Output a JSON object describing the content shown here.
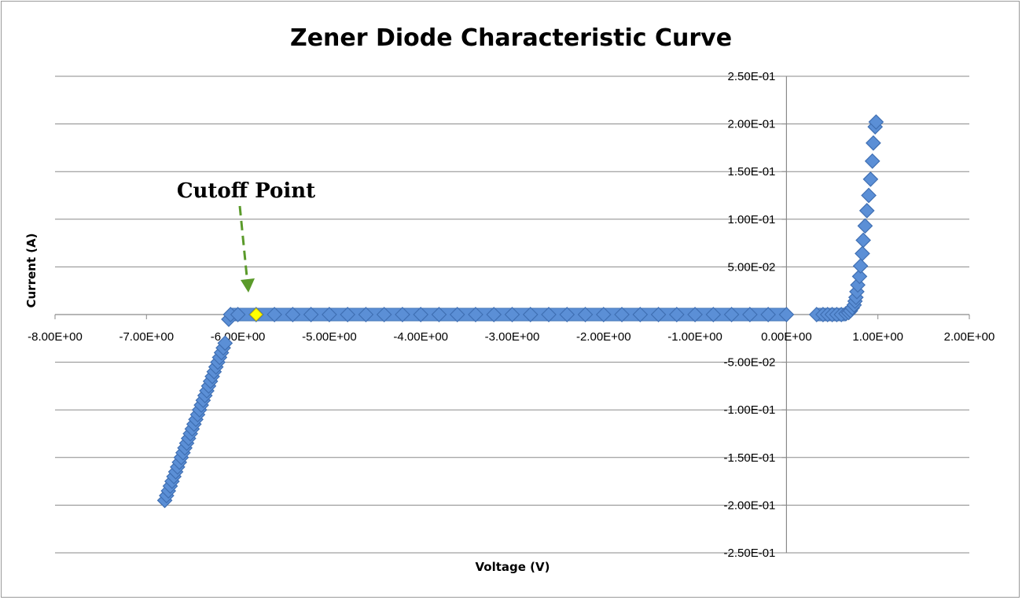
{
  "chart_data": {
    "type": "scatter",
    "title": "Zener Diode Characteristic Curve",
    "xlabel": "Voltage (V)",
    "ylabel": "Current (A)",
    "xlim": [
      -8,
      2
    ],
    "ylim": [
      -0.25,
      0.25
    ],
    "x_ticks": [
      -8,
      -7,
      -6,
      -5,
      -4,
      -3,
      -2,
      -1,
      0,
      1,
      2
    ],
    "x_tick_labels": [
      "-8.00E+00",
      "-7.00E+00",
      "-6.00E+00",
      "-5.00E+00",
      "-4.00E+00",
      "-3.00E+00",
      "-2.00E+00",
      "-1.00E+00",
      "0.00E+00",
      "1.00E+00",
      "2.00E+00"
    ],
    "y_ticks": [
      0.25,
      0.2,
      0.15,
      0.1,
      0.05,
      0,
      -0.05,
      -0.1,
      -0.15,
      -0.2,
      -0.25
    ],
    "y_tick_labels": [
      "2.50E-01",
      "2.00E-01",
      "1.50E-01",
      "1.00E-01",
      "5.00E-02",
      "0.00E+00",
      "-5.00E-02",
      "-1.00E-01",
      "-1.50E-01",
      "-2.00E-01",
      "-2.50E-01"
    ],
    "grid": true,
    "legend": "none",
    "series_color": "#5b8fd6",
    "series": [
      {
        "points": [
          [
            -6.8,
            -0.195
          ],
          [
            -6.78,
            -0.19
          ],
          [
            -6.76,
            -0.185
          ],
          [
            -6.74,
            -0.18
          ],
          [
            -6.72,
            -0.175
          ],
          [
            -6.7,
            -0.17
          ],
          [
            -6.68,
            -0.165
          ],
          [
            -6.66,
            -0.16
          ],
          [
            -6.64,
            -0.155
          ],
          [
            -6.62,
            -0.15
          ],
          [
            -6.6,
            -0.145
          ],
          [
            -6.58,
            -0.14
          ],
          [
            -6.56,
            -0.135
          ],
          [
            -6.54,
            -0.13
          ],
          [
            -6.52,
            -0.125
          ],
          [
            -6.5,
            -0.12
          ],
          [
            -6.48,
            -0.115
          ],
          [
            -6.46,
            -0.11
          ],
          [
            -6.44,
            -0.105
          ],
          [
            -6.42,
            -0.1
          ],
          [
            -6.4,
            -0.095
          ],
          [
            -6.38,
            -0.09
          ],
          [
            -6.36,
            -0.085
          ],
          [
            -6.34,
            -0.08
          ],
          [
            -6.32,
            -0.075
          ],
          [
            -6.3,
            -0.07
          ],
          [
            -6.28,
            -0.065
          ],
          [
            -6.26,
            -0.06
          ],
          [
            -6.24,
            -0.055
          ],
          [
            -6.22,
            -0.05
          ],
          [
            -6.2,
            -0.045
          ],
          [
            -6.18,
            -0.04
          ],
          [
            -6.16,
            -0.035
          ],
          [
            -6.14,
            -0.03
          ],
          [
            -6.1,
            -0.005
          ],
          [
            -6.08,
            0.0
          ],
          [
            -6.0,
            0.0
          ],
          [
            -5.8,
            0.0
          ],
          [
            -5.6,
            0.0
          ],
          [
            -5.4,
            0.0
          ],
          [
            -5.2,
            0.0
          ],
          [
            -5.0,
            0.0
          ],
          [
            -4.8,
            0.0
          ],
          [
            -4.6,
            0.0
          ],
          [
            -4.4,
            0.0
          ],
          [
            -4.2,
            0.0
          ],
          [
            -4.0,
            0.0
          ],
          [
            -3.8,
            0.0
          ],
          [
            -3.6,
            0.0
          ],
          [
            -3.4,
            0.0
          ],
          [
            -3.2,
            0.0
          ],
          [
            -3.0,
            0.0
          ],
          [
            -2.8,
            0.0
          ],
          [
            -2.6,
            0.0
          ],
          [
            -2.4,
            0.0
          ],
          [
            -2.2,
            0.0
          ],
          [
            -2.0,
            0.0
          ],
          [
            -1.8,
            0.0
          ],
          [
            -1.6,
            0.0
          ],
          [
            -1.4,
            0.0
          ],
          [
            -1.2,
            0.0
          ],
          [
            -1.0,
            0.0
          ],
          [
            -0.8,
            0.0
          ],
          [
            -0.6,
            0.0
          ],
          [
            -0.4,
            0.0
          ],
          [
            -0.2,
            0.0
          ],
          [
            0.0,
            0.0
          ],
          [
            0.33,
            0.0
          ],
          [
            0.4,
            0.0
          ],
          [
            0.45,
            0.0
          ],
          [
            0.5,
            0.0
          ],
          [
            0.55,
            0.0
          ],
          [
            0.6,
            0.0
          ],
          [
            0.65,
            0.001
          ],
          [
            0.68,
            0.002
          ],
          [
            0.7,
            0.004
          ],
          [
            0.72,
            0.007
          ],
          [
            0.74,
            0.01
          ],
          [
            0.75,
            0.014
          ],
          [
            0.76,
            0.018
          ],
          [
            0.77,
            0.024
          ],
          [
            0.78,
            0.031
          ],
          [
            0.8,
            0.04
          ],
          [
            0.81,
            0.051
          ],
          [
            0.83,
            0.064
          ],
          [
            0.84,
            0.078
          ],
          [
            0.86,
            0.093
          ],
          [
            0.88,
            0.109
          ],
          [
            0.9,
            0.125
          ],
          [
            0.92,
            0.142
          ],
          [
            0.94,
            0.161
          ],
          [
            0.95,
            0.18
          ],
          [
            0.97,
            0.197
          ],
          [
            0.98,
            0.202
          ]
        ]
      }
    ],
    "annotation": {
      "text": "Cutoff Point",
      "point": [
        -5.8,
        0.0
      ],
      "marker_color": "#ffff00",
      "arrow_color": "#5a9a2a"
    }
  }
}
